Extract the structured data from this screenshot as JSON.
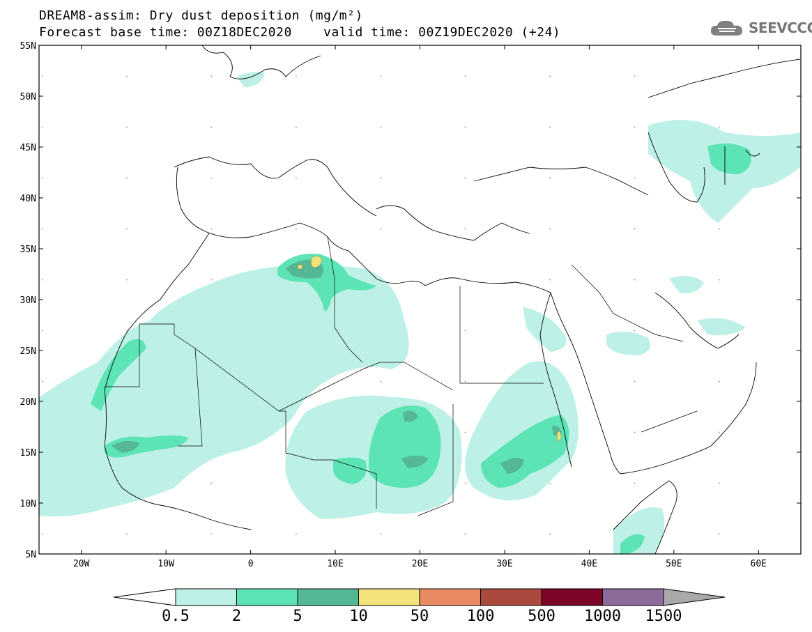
{
  "title": {
    "line1": "DREAM8-assim: Dry dust deposition (mg/m²)",
    "line2": "Forecast base time: 00Z18DEC2020    valid time: 00Z19DEC2020 (+24)"
  },
  "logo": {
    "text": "SEEVCCC",
    "icon": "cloud-icon"
  },
  "map": {
    "lat_labels": [
      "55N",
      "50N",
      "45N",
      "40N",
      "35N",
      "30N",
      "25N",
      "20N",
      "15N",
      "10N",
      "5N"
    ],
    "lon_labels": [
      "20W",
      "10W",
      "0",
      "10E",
      "20E",
      "30E",
      "40E",
      "50E",
      "60E"
    ],
    "lon_range": [
      -25,
      65
    ],
    "lat_range": [
      5,
      55
    ]
  },
  "colorbar": {
    "labels": [
      "0.5",
      "2",
      "5",
      "10",
      "50",
      "100",
      "500",
      "1000",
      "1500"
    ],
    "colors": [
      "#bdf0e6",
      "#5ce3b6",
      "#55b894",
      "#f2e47a",
      "#e88a62",
      "#aa4a3e",
      "#7d0628",
      "#8b6b9a"
    ],
    "under_color": "#ffffff",
    "over_color": "#a9a9a9"
  }
}
